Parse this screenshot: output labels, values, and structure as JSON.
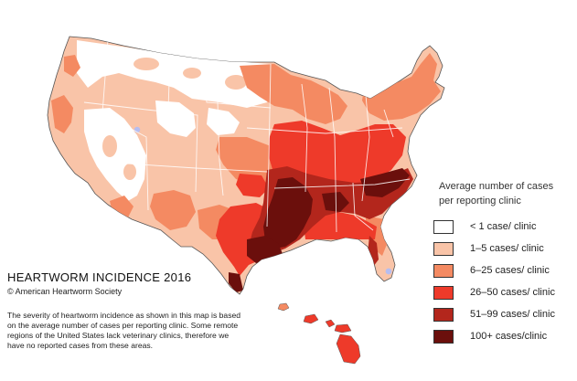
{
  "map": {
    "title": "HEARTWORM INCIDENCE 2016",
    "copyright": "© American Heartworm Society",
    "description": "The severity of heartworm incidence as shown in this map is based on the average number of cases per reporting clinic.  Some remote regions of the United States lack veterinary clinics, therefore we have no reported cases from these areas."
  },
  "legend": {
    "title_line1": "Average number of cases",
    "title_line2": "per reporting clinic",
    "items": [
      {
        "label": "< 1 case/ clinic",
        "color": "#ffffff"
      },
      {
        "label": "1–5 cases/ clinic",
        "color": "#f9c4a8"
      },
      {
        "label": "6–25  cases/ clinic",
        "color": "#f48a62"
      },
      {
        "label": "26–50  cases/ clinic",
        "color": "#ee3a2a"
      },
      {
        "label": "51–99 cases/ clinic",
        "color": "#b3261c"
      },
      {
        "label": "100+ cases/clinic",
        "color": "#6b0f0c"
      }
    ]
  },
  "no_clinic_color": "#b6bdf0"
}
